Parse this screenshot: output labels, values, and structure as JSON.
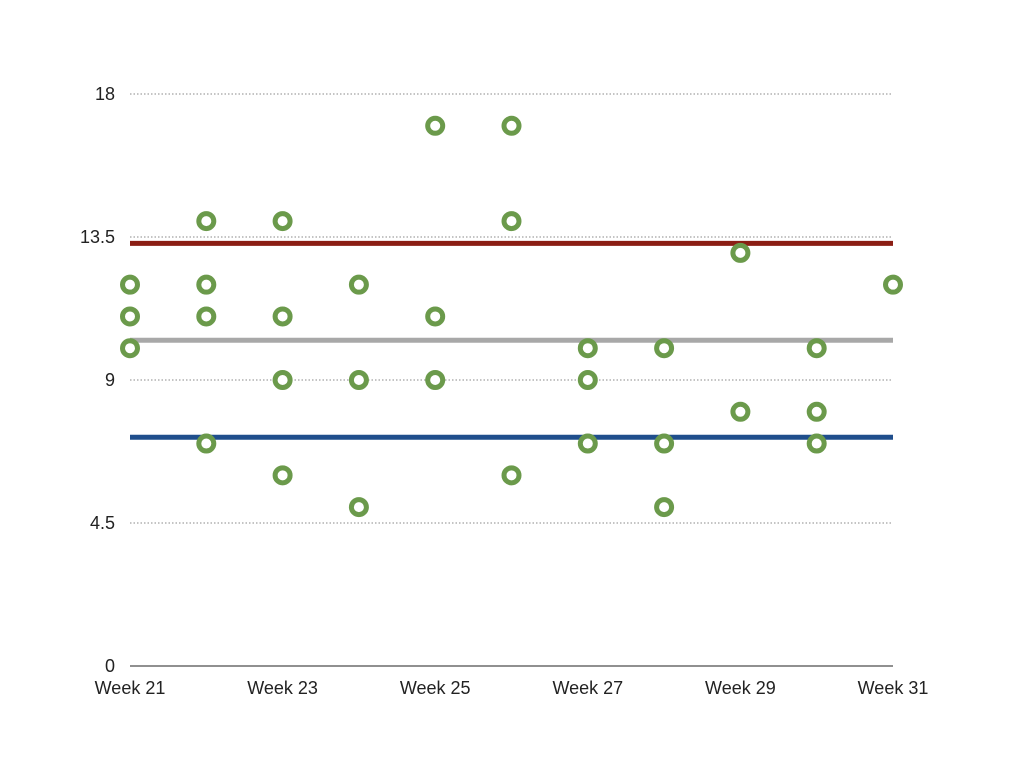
{
  "chart_data": {
    "type": "scatter",
    "title": "",
    "xlabel": "",
    "ylabel": "",
    "x_tick_labels": [
      "Week 21",
      "Week 23",
      "Week 25",
      "Week 27",
      "Week 29",
      "Week 31"
    ],
    "x_tick_values": [
      21,
      23,
      25,
      27,
      29,
      31
    ],
    "xlim": [
      21,
      31
    ],
    "y_tick_labels": [
      "0",
      "4.5",
      "9",
      "13.5",
      "18"
    ],
    "y_tick_values": [
      0,
      4.5,
      9,
      13.5,
      18
    ],
    "ylim": [
      0,
      18
    ],
    "grid": "horizontal dotted",
    "legend": "none",
    "points": [
      {
        "x": 21,
        "y": 12
      },
      {
        "x": 21,
        "y": 11
      },
      {
        "x": 21,
        "y": 10
      },
      {
        "x": 22,
        "y": 14
      },
      {
        "x": 22,
        "y": 12
      },
      {
        "x": 22,
        "y": 11
      },
      {
        "x": 22,
        "y": 7
      },
      {
        "x": 23,
        "y": 14
      },
      {
        "x": 23,
        "y": 11
      },
      {
        "x": 23,
        "y": 9
      },
      {
        "x": 23,
        "y": 6
      },
      {
        "x": 24,
        "y": 12
      },
      {
        "x": 24,
        "y": 9
      },
      {
        "x": 24,
        "y": 5
      },
      {
        "x": 25,
        "y": 17
      },
      {
        "x": 25,
        "y": 11
      },
      {
        "x": 25,
        "y": 9
      },
      {
        "x": 26,
        "y": 17
      },
      {
        "x": 26,
        "y": 14
      },
      {
        "x": 26,
        "y": 6
      },
      {
        "x": 27,
        "y": 10
      },
      {
        "x": 27,
        "y": 9
      },
      {
        "x": 27,
        "y": 7
      },
      {
        "x": 28,
        "y": 10
      },
      {
        "x": 28,
        "y": 7
      },
      {
        "x": 28,
        "y": 5
      },
      {
        "x": 29,
        "y": 13
      },
      {
        "x": 29,
        "y": 8
      },
      {
        "x": 30,
        "y": 10
      },
      {
        "x": 30,
        "y": 8
      },
      {
        "x": 30,
        "y": 7
      },
      {
        "x": 31,
        "y": 12
      }
    ],
    "reference_lines": [
      {
        "y": 13.3,
        "color": "#8b1e14"
      },
      {
        "y": 10.25,
        "color": "#a8a8a8"
      },
      {
        "y": 7.2,
        "color": "#1f4e8c"
      }
    ],
    "marker_color": "#6b9a4b",
    "grid_color": "#888888",
    "axis_color": "#222222"
  }
}
